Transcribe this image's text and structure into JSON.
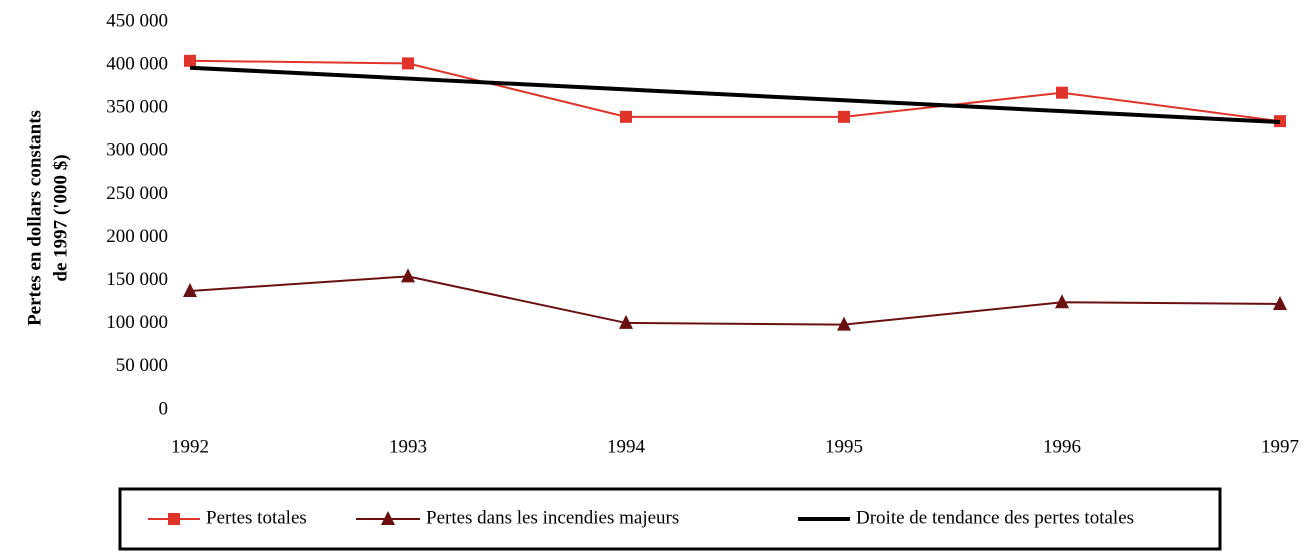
{
  "chart_data": {
    "type": "line",
    "ylabel": [
      "Pertes en dollars constants",
      "de 1997 ('000 $)"
    ],
    "categories": [
      "1992",
      "1993",
      "1994",
      "1995",
      "1996",
      "1997"
    ],
    "series": [
      {
        "name": "Pertes totales",
        "color": "#e0342a",
        "marker": "square",
        "values": [
          405000,
          402000,
          340000,
          340000,
          368000,
          335000
        ]
      },
      {
        "name": "Pertes dans les incendies majeurs",
        "color": "#6b1010",
        "marker": "triangle",
        "values": [
          138000,
          155000,
          101000,
          99000,
          125000,
          123000
        ]
      },
      {
        "name": "Droite de tendance des pertes totales",
        "color": "#000000",
        "marker": "none",
        "values": [
          397000,
          384400,
          371800,
          359200,
          346600,
          334000
        ]
      }
    ],
    "ylim": [
      0,
      450000
    ],
    "yticks": [
      {
        "value": 0,
        "label": "0"
      },
      {
        "value": 50000,
        "label": "50 000"
      },
      {
        "value": 100000,
        "label": "100 000"
      },
      {
        "value": 150000,
        "label": "150 000"
      },
      {
        "value": 200000,
        "label": "200 000"
      },
      {
        "value": 250000,
        "label": "250 000"
      },
      {
        "value": 300000,
        "label": "300 000"
      },
      {
        "value": 350000,
        "label": "350 000"
      },
      {
        "value": 400000,
        "label": "400 000"
      },
      {
        "value": 450000,
        "label": "450 000"
      }
    ],
    "grid": false,
    "legend": "bottom"
  }
}
